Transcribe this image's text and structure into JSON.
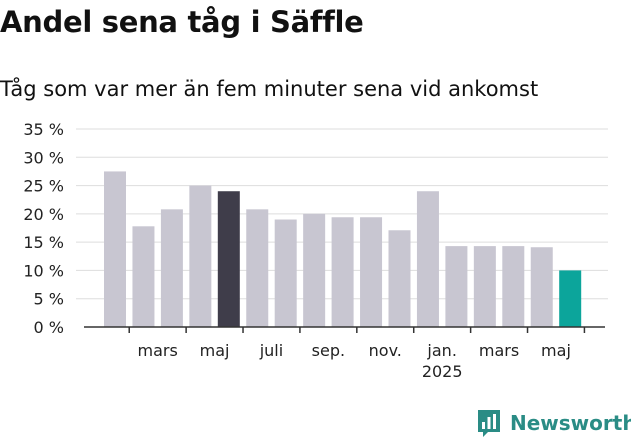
{
  "chart_data": {
    "type": "bar",
    "title": "Andel sena tåg i Säffle",
    "subtitle": "Tåg som var mer än fem minuter sena vid ankomst",
    "xlabel": "",
    "ylabel": "",
    "ylim": [
      0,
      35
    ],
    "y_ticks": [
      0,
      5,
      10,
      15,
      20,
      25,
      30,
      35
    ],
    "y_tick_labels": [
      "0 %",
      "5 %",
      "10 %",
      "15 %",
      "20 %",
      "25 %",
      "30 %",
      "35 %"
    ],
    "x_tick_labels": [
      {
        "bar": 1.5,
        "lines": [
          "mars"
        ]
      },
      {
        "bar": 3.5,
        "lines": [
          "maj"
        ]
      },
      {
        "bar": 5.5,
        "lines": [
          "juli"
        ]
      },
      {
        "bar": 7.5,
        "lines": [
          "sep."
        ]
      },
      {
        "bar": 9.5,
        "lines": [
          "nov."
        ]
      },
      {
        "bar": 11.5,
        "lines": [
          "jan.",
          "2025"
        ]
      },
      {
        "bar": 13.5,
        "lines": [
          "mars"
        ]
      },
      {
        "bar": 15.5,
        "lines": [
          "maj"
        ]
      }
    ],
    "grid": true,
    "values": [
      27.5,
      17.8,
      20.8,
      25.0,
      24.0,
      20.8,
      19.0,
      20.0,
      19.4,
      19.4,
      17.1,
      24.0,
      14.3,
      14.3,
      14.3,
      14.1,
      10.0
    ],
    "bar_colors": [
      "#c8c6d1",
      "#c8c6d1",
      "#c8c6d1",
      "#c8c6d1",
      "#3f3d4a",
      "#c8c6d1",
      "#c8c6d1",
      "#c8c6d1",
      "#c8c6d1",
      "#c8c6d1",
      "#c8c6d1",
      "#c8c6d1",
      "#c8c6d1",
      "#c8c6d1",
      "#c8c6d1",
      "#c8c6d1",
      "#0ca59b"
    ]
  },
  "colors": {
    "bar_default": "#c8c6d1",
    "bar_highlight_dark": "#3f3d4a",
    "bar_highlight_latest": "#0ca59b",
    "grid": "#dddddd",
    "axis": "#333333",
    "brand": "#2a8c85"
  },
  "logo": {
    "icon": "newsworthy-chart-icon",
    "text": "Newsworthy"
  }
}
